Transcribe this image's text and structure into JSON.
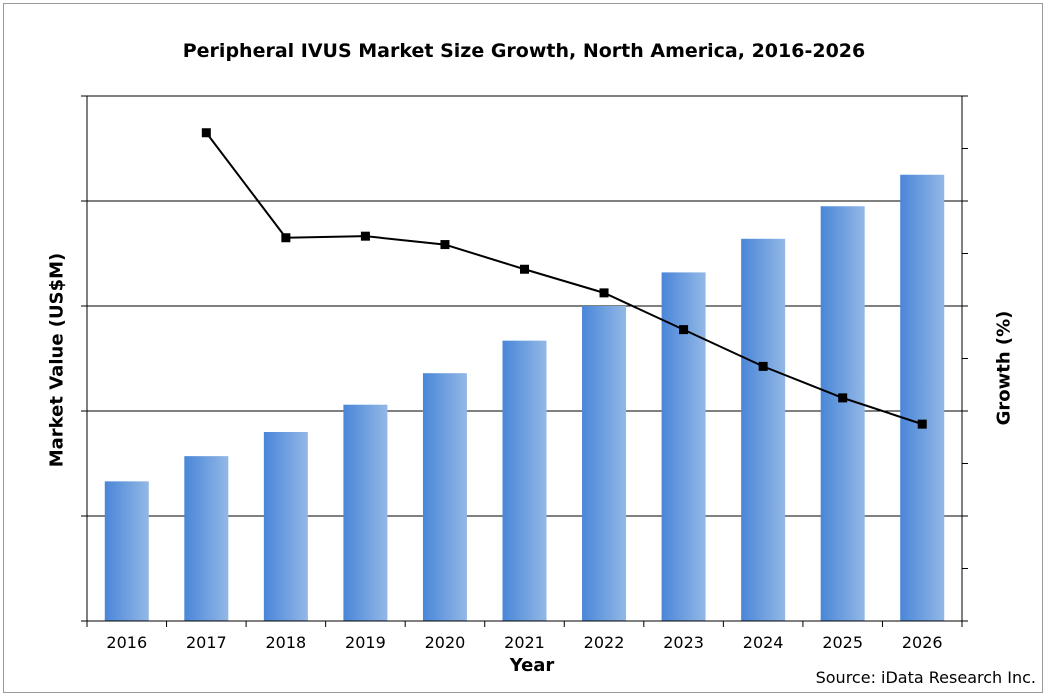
{
  "chart_data": {
    "type": "bar",
    "title": "Peripheral IVUS Market Size Growth, North America, 2016-2026",
    "xlabel": "Year",
    "ylabel": "Market Value (US$M)",
    "y2label": "Growth (%)",
    "categories": [
      "2016",
      "2017",
      "2018",
      "2019",
      "2020",
      "2021",
      "2022",
      "2023",
      "2024",
      "2025",
      "2026"
    ],
    "ylim": [
      0,
      5
    ],
    "y2lim": [
      0,
      10
    ],
    "grid": true,
    "series": [
      {
        "type": "bar",
        "axis": "left",
        "values": [
          1.33,
          1.57,
          1.8,
          2.06,
          2.36,
          2.67,
          3.0,
          3.32,
          3.64,
          3.95,
          4.25
        ]
      },
      {
        "type": "line",
        "axis": "right",
        "values": [
          null,
          9.3,
          7.3,
          7.33,
          7.17,
          6.7,
          6.25,
          5.55,
          4.85,
          4.25,
          3.75
        ]
      }
    ],
    "colors": {
      "bar_dark": "#4a86d8",
      "bar_light": "#93b8e6",
      "line": "#000000",
      "grid": "#000000"
    }
  },
  "source": "Source: iData Research Inc."
}
